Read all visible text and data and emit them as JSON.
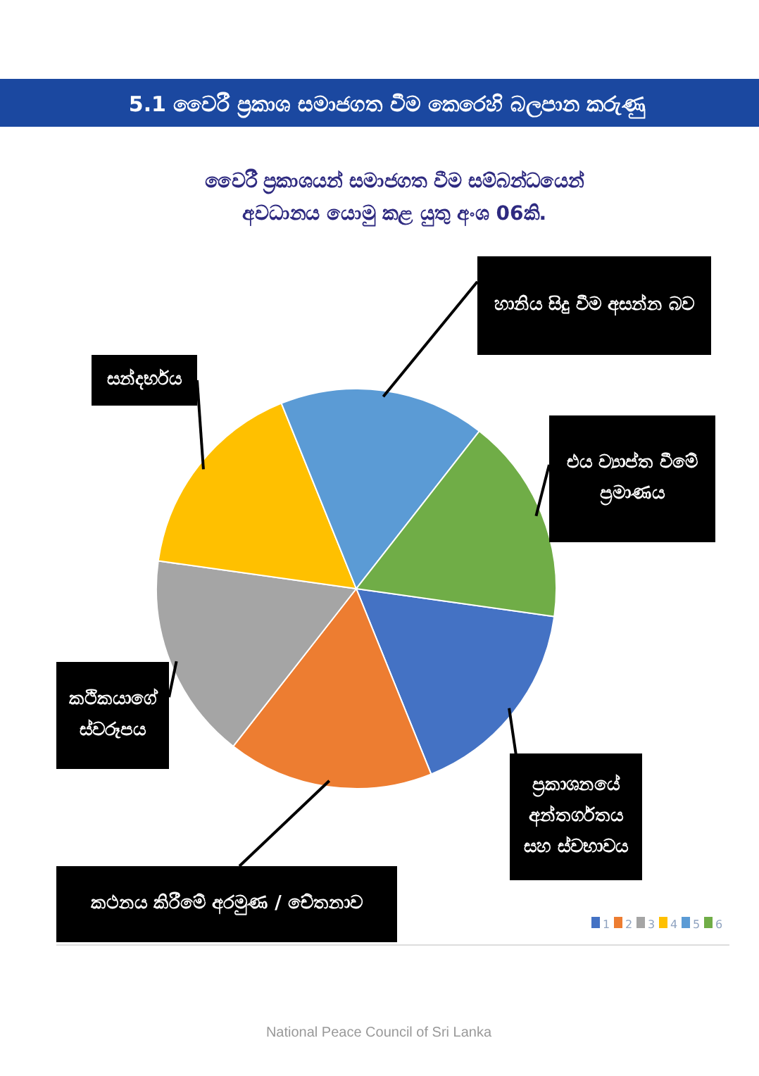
{
  "chart_data": {
    "type": "pie",
    "title": "5.1 වෛරී ප්‍රකාශ සමාජගත වීම කෙරෙහි බලපාන කරුණු",
    "subtitle": "වෛරී ප්‍රකාශයන් සමාජගත වීම සම්බන්ධයෙන්\nඅවධානය යොමු කළ යුතු අංශ 06කි.",
    "categories": [
      "1",
      "2",
      "3",
      "4",
      "5",
      "6"
    ],
    "values": [
      16.67,
      16.67,
      16.67,
      16.67,
      16.67,
      16.67
    ],
    "colors": [
      "#4472c4",
      "#ed7d31",
      "#a5a5a5",
      "#ffc000",
      "#5b9bd5",
      "#70ad47"
    ],
    "legend": "bottom right",
    "annotations": [
      {
        "text": "ප්‍රකාශනයේ අන්තර්ගතය සහ ස්වභාවය",
        "x": "1"
      },
      {
        "text": "කථනය කිරීමේ අරමුණ / චේතනාව",
        "x": "2"
      },
      {
        "text": "කථිකයාගේ ස්වරූපය",
        "x": "3"
      },
      {
        "text": "සන්දර්භය",
        "x": "4"
      },
      {
        "text": "හානිය සිදු වීම අසන්න බව",
        "x": "5"
      },
      {
        "text": "එය ව්‍යාප්ත වීමේ ප්‍රමාණය",
        "x": "6"
      },
      "National Peace Council of Sri Lanka"
    ]
  }
}
